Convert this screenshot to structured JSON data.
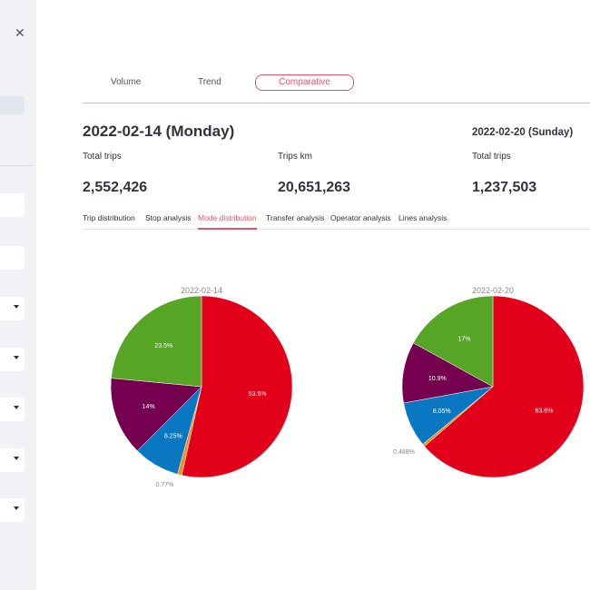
{
  "sidebar": {
    "close_icon": "close-icon",
    "select_count": 5
  },
  "tabs": [
    {
      "label": "Volume"
    },
    {
      "label": "Trend"
    },
    {
      "label": "Comparative",
      "active": true
    }
  ],
  "left": {
    "title": "2022-02-14 (Monday)",
    "metrics": [
      {
        "label": "Total trips",
        "value": "2,552,426"
      },
      {
        "label": "Trips km",
        "value": "20,651,263"
      }
    ]
  },
  "right": {
    "title": "2022-02-20 (Sunday)",
    "metrics": [
      {
        "label": "Total trips",
        "value": "1,237,503"
      }
    ]
  },
  "subtabs": [
    "Trip distribution",
    "Stop analysis",
    "Mode distribution",
    "Transfer analysis",
    "Operator analysis",
    "Lines analysis"
  ],
  "active_subtab": "Mode distribution",
  "colors": {
    "accent": "#e8536a",
    "red": "#e2001a",
    "orange": "#f28e1c",
    "blue": "#0a77c2",
    "purple": "#74004f",
    "green": "#57a524"
  },
  "chart_data": [
    {
      "type": "pie",
      "title": "2022-02-14",
      "values": [
        53.5,
        0.77,
        8.25,
        14,
        23.5
      ],
      "labels": [
        "53.5%",
        "0.77%",
        "8.25%",
        "14%",
        "23.5%"
      ],
      "colors": [
        "#e2001a",
        "#f28e1c",
        "#0a77c2",
        "#74004f",
        "#57a524"
      ],
      "direction": "clockwise",
      "start": "top"
    },
    {
      "type": "pie",
      "title": "2022-02-20",
      "values": [
        63.6,
        0.488,
        8.05,
        10.9,
        17
      ],
      "labels": [
        "63.6%",
        "0.488%",
        "8.05%",
        "10.9%",
        "17%"
      ],
      "colors": [
        "#e2001a",
        "#f28e1c",
        "#0a77c2",
        "#74004f",
        "#57a524"
      ],
      "direction": "clockwise",
      "start": "top"
    }
  ]
}
